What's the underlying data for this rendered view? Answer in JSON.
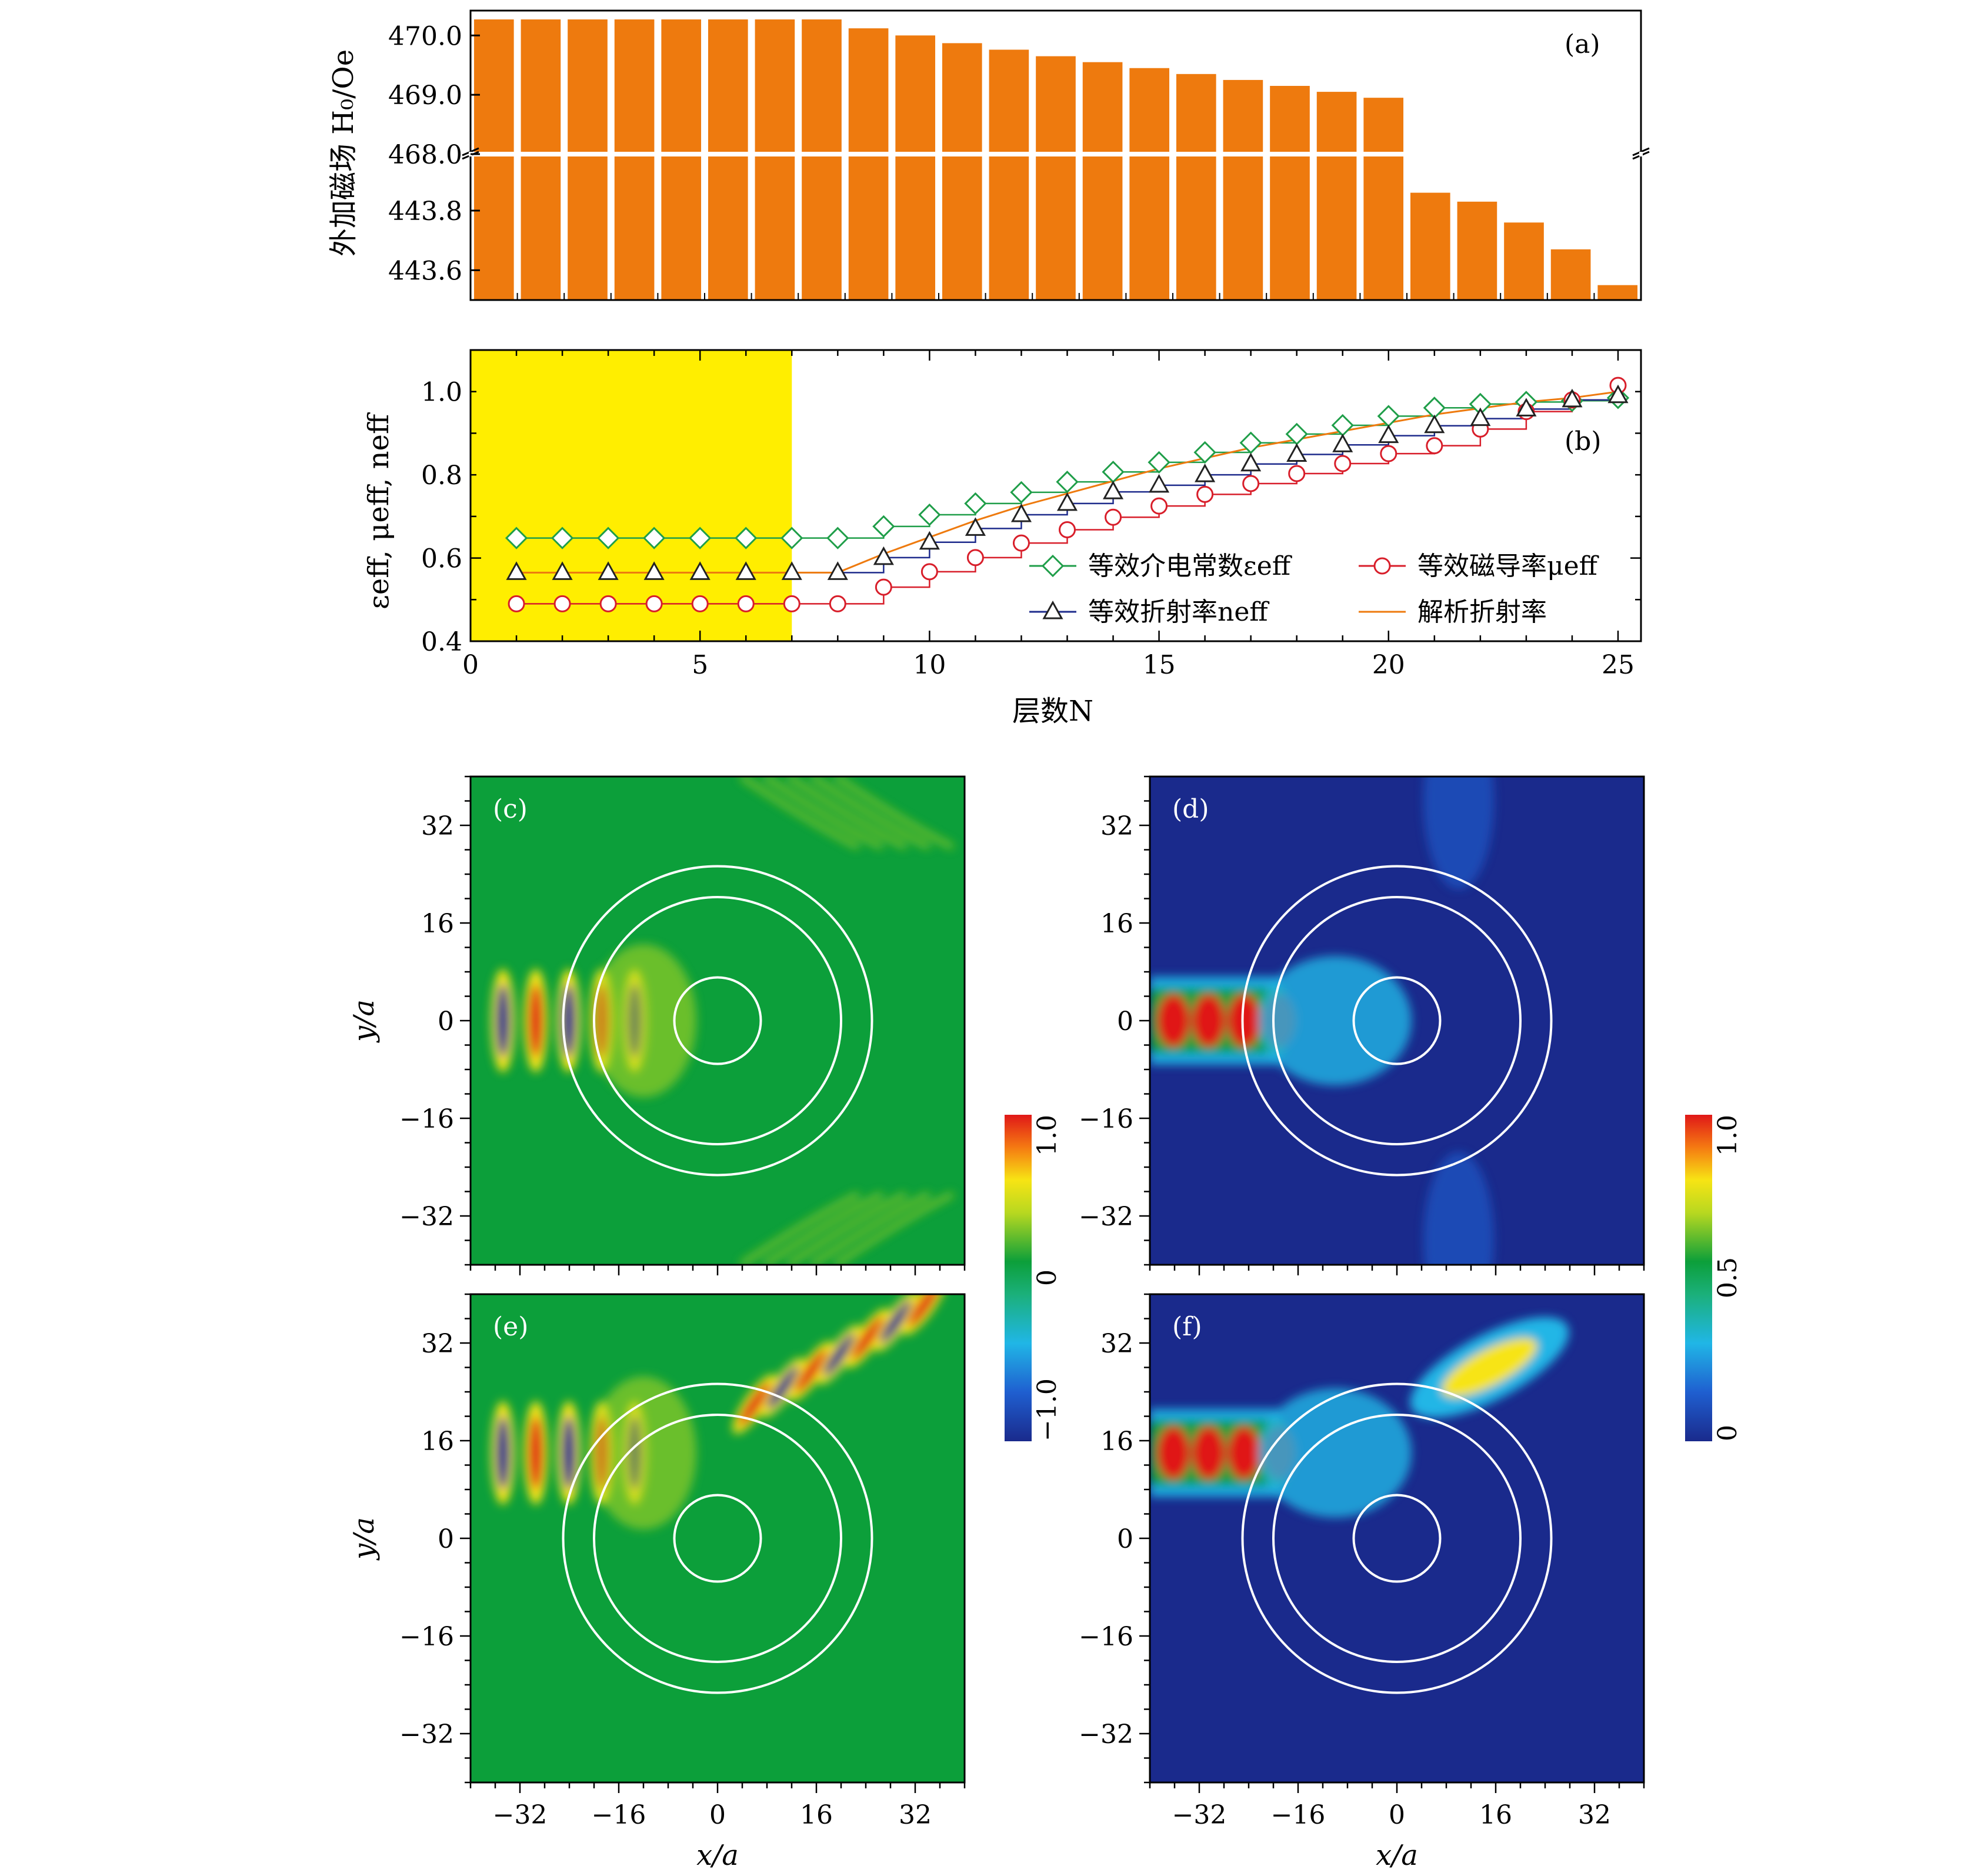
{
  "chart_data": [
    {
      "id": "a",
      "type": "bar",
      "panel_label": "(a)",
      "ylabel": "外加磁场 H₀/Oe",
      "broken_axis": true,
      "upper_ticks": [
        "470.0",
        "469.0",
        "468.0"
      ],
      "lower_ticks": [
        "443.8",
        "443.6"
      ],
      "upper_ylim": [
        468.0,
        470.3
      ],
      "lower_ylim": [
        443.5,
        443.95
      ],
      "categories": [
        1,
        2,
        3,
        4,
        5,
        6,
        7,
        8,
        9,
        10,
        11,
        12,
        13,
        14,
        15,
        16,
        17,
        18,
        19,
        20,
        21,
        22,
        23,
        24,
        25
      ],
      "values": [
        470.27,
        470.27,
        470.27,
        470.27,
        470.27,
        470.27,
        470.27,
        470.27,
        470.12,
        470.0,
        469.87,
        469.76,
        469.65,
        469.55,
        469.45,
        469.35,
        469.25,
        469.15,
        469.05,
        468.95,
        443.86,
        443.83,
        443.76,
        443.67,
        443.55
      ],
      "bar_color": "#ee7a0e"
    },
    {
      "id": "b",
      "type": "line",
      "panel_label": "(b)",
      "xlabel": "层数N",
      "ylabel": "εeff, μeff, neff",
      "xlim": [
        0,
        25.5
      ],
      "ylim": [
        0.4,
        1.1
      ],
      "xticks": [
        "0",
        "5",
        "10",
        "15",
        "20",
        "25"
      ],
      "yticks": [
        "0.4",
        "0.6",
        "0.8",
        "1.0"
      ],
      "highlight": {
        "x_range": [
          0,
          7
        ],
        "color": "#ffee00"
      },
      "x": [
        1,
        2,
        3,
        4,
        5,
        6,
        7,
        8,
        9,
        10,
        11,
        12,
        13,
        14,
        15,
        16,
        17,
        18,
        19,
        20,
        21,
        22,
        23,
        24,
        25
      ],
      "series": [
        {
          "name": "等效介电常数εeff",
          "marker": "diamond",
          "color": "#1f9e49",
          "values": [
            0.648,
            0.648,
            0.648,
            0.648,
            0.648,
            0.648,
            0.648,
            0.648,
            0.676,
            0.704,
            0.731,
            0.758,
            0.783,
            0.807,
            0.83,
            0.854,
            0.877,
            0.898,
            0.919,
            0.941,
            0.961,
            0.97,
            0.975,
            0.978,
            0.985
          ]
        },
        {
          "name": "等效磁导率μeff",
          "marker": "circle",
          "color": "#d81e2a",
          "values": [
            0.49,
            0.49,
            0.49,
            0.49,
            0.49,
            0.49,
            0.49,
            0.49,
            0.53,
            0.567,
            0.601,
            0.636,
            0.668,
            0.698,
            0.725,
            0.753,
            0.779,
            0.803,
            0.827,
            0.851,
            0.87,
            0.91,
            0.952,
            0.98,
            1.015
          ]
        },
        {
          "name": "等效折射率neff",
          "marker": "triangle",
          "color": "#1e2b8c",
          "values": [
            0.565,
            0.565,
            0.565,
            0.565,
            0.565,
            0.565,
            0.565,
            0.565,
            0.601,
            0.638,
            0.671,
            0.704,
            0.731,
            0.759,
            0.775,
            0.8,
            0.826,
            0.849,
            0.872,
            0.894,
            0.918,
            0.935,
            0.958,
            0.98,
            0.99
          ]
        },
        {
          "name": "解析折射率",
          "marker": "none",
          "color": "#ee7a0e",
          "values": [
            0.565,
            0.565,
            0.565,
            0.565,
            0.565,
            0.565,
            0.565,
            0.565,
            0.61,
            0.65,
            0.69,
            0.725,
            0.755,
            0.785,
            0.815,
            0.84,
            0.865,
            0.885,
            0.905,
            0.925,
            0.945,
            0.96,
            0.975,
            0.985,
            1.0
          ]
        }
      ]
    },
    {
      "id": "field_maps",
      "type": "heatmap",
      "xlabel": "x/a",
      "ylabel": "y/a",
      "ticks": [
        "−32",
        "−16",
        "0",
        "16",
        "32"
      ],
      "tick_values": [
        -32,
        -16,
        0,
        16,
        32
      ],
      "lim": [
        -40,
        40
      ],
      "ring_radii": [
        7,
        20,
        25
      ],
      "panels": [
        {
          "label": "(c)",
          "kind": "field",
          "beam_y": 0,
          "deflect": false
        },
        {
          "label": "(d)",
          "kind": "intensity",
          "beam_y": 0,
          "deflect": false
        },
        {
          "label": "(e)",
          "kind": "field",
          "beam_y": 14,
          "deflect": true
        },
        {
          "label": "(f)",
          "kind": "intensity",
          "beam_y": 14,
          "deflect": true
        }
      ],
      "colorbar_field": {
        "ticks": [
          "1.0",
          "0",
          "−1.0"
        ]
      },
      "colorbar_intensity": {
        "ticks": [
          "1.0",
          "0.5",
          "0"
        ]
      }
    }
  ]
}
